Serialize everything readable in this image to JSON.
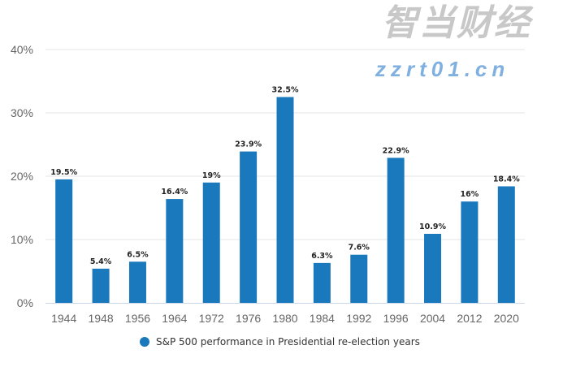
{
  "chart_data": {
    "type": "bar",
    "categories": [
      "1944",
      "1948",
      "1956",
      "1964",
      "1972",
      "1976",
      "1980",
      "1984",
      "1992",
      "1996",
      "2004",
      "2012",
      "2020"
    ],
    "series": [
      {
        "name": "S&P 500 performance in Presidential re-election years",
        "values": [
          19.5,
          5.4,
          6.5,
          16.4,
          19,
          23.9,
          32.5,
          6.3,
          7.6,
          22.9,
          10.9,
          16,
          18.4
        ],
        "labels": [
          "19.5%",
          "5.4%",
          "6.5%",
          "16.4%",
          "19%",
          "23.9%",
          "32.5%",
          "6.3%",
          "7.6%",
          "22.9%",
          "10.9%",
          "16%",
          "18.4%"
        ]
      }
    ],
    "yticks": [
      0,
      10,
      20,
      30,
      40
    ],
    "ytick_labels": [
      "0%",
      "10%",
      "20%",
      "30%",
      "40%"
    ],
    "ylim": [
      0,
      40
    ],
    "grid": true,
    "legend_position": "bottom",
    "colors": {
      "bar": "#1a78bd",
      "grid": "#e6e6e6",
      "axis": "#ccd6eb"
    }
  },
  "watermark": {
    "line1": "智当财经",
    "line2": "zzrt01.cn"
  }
}
